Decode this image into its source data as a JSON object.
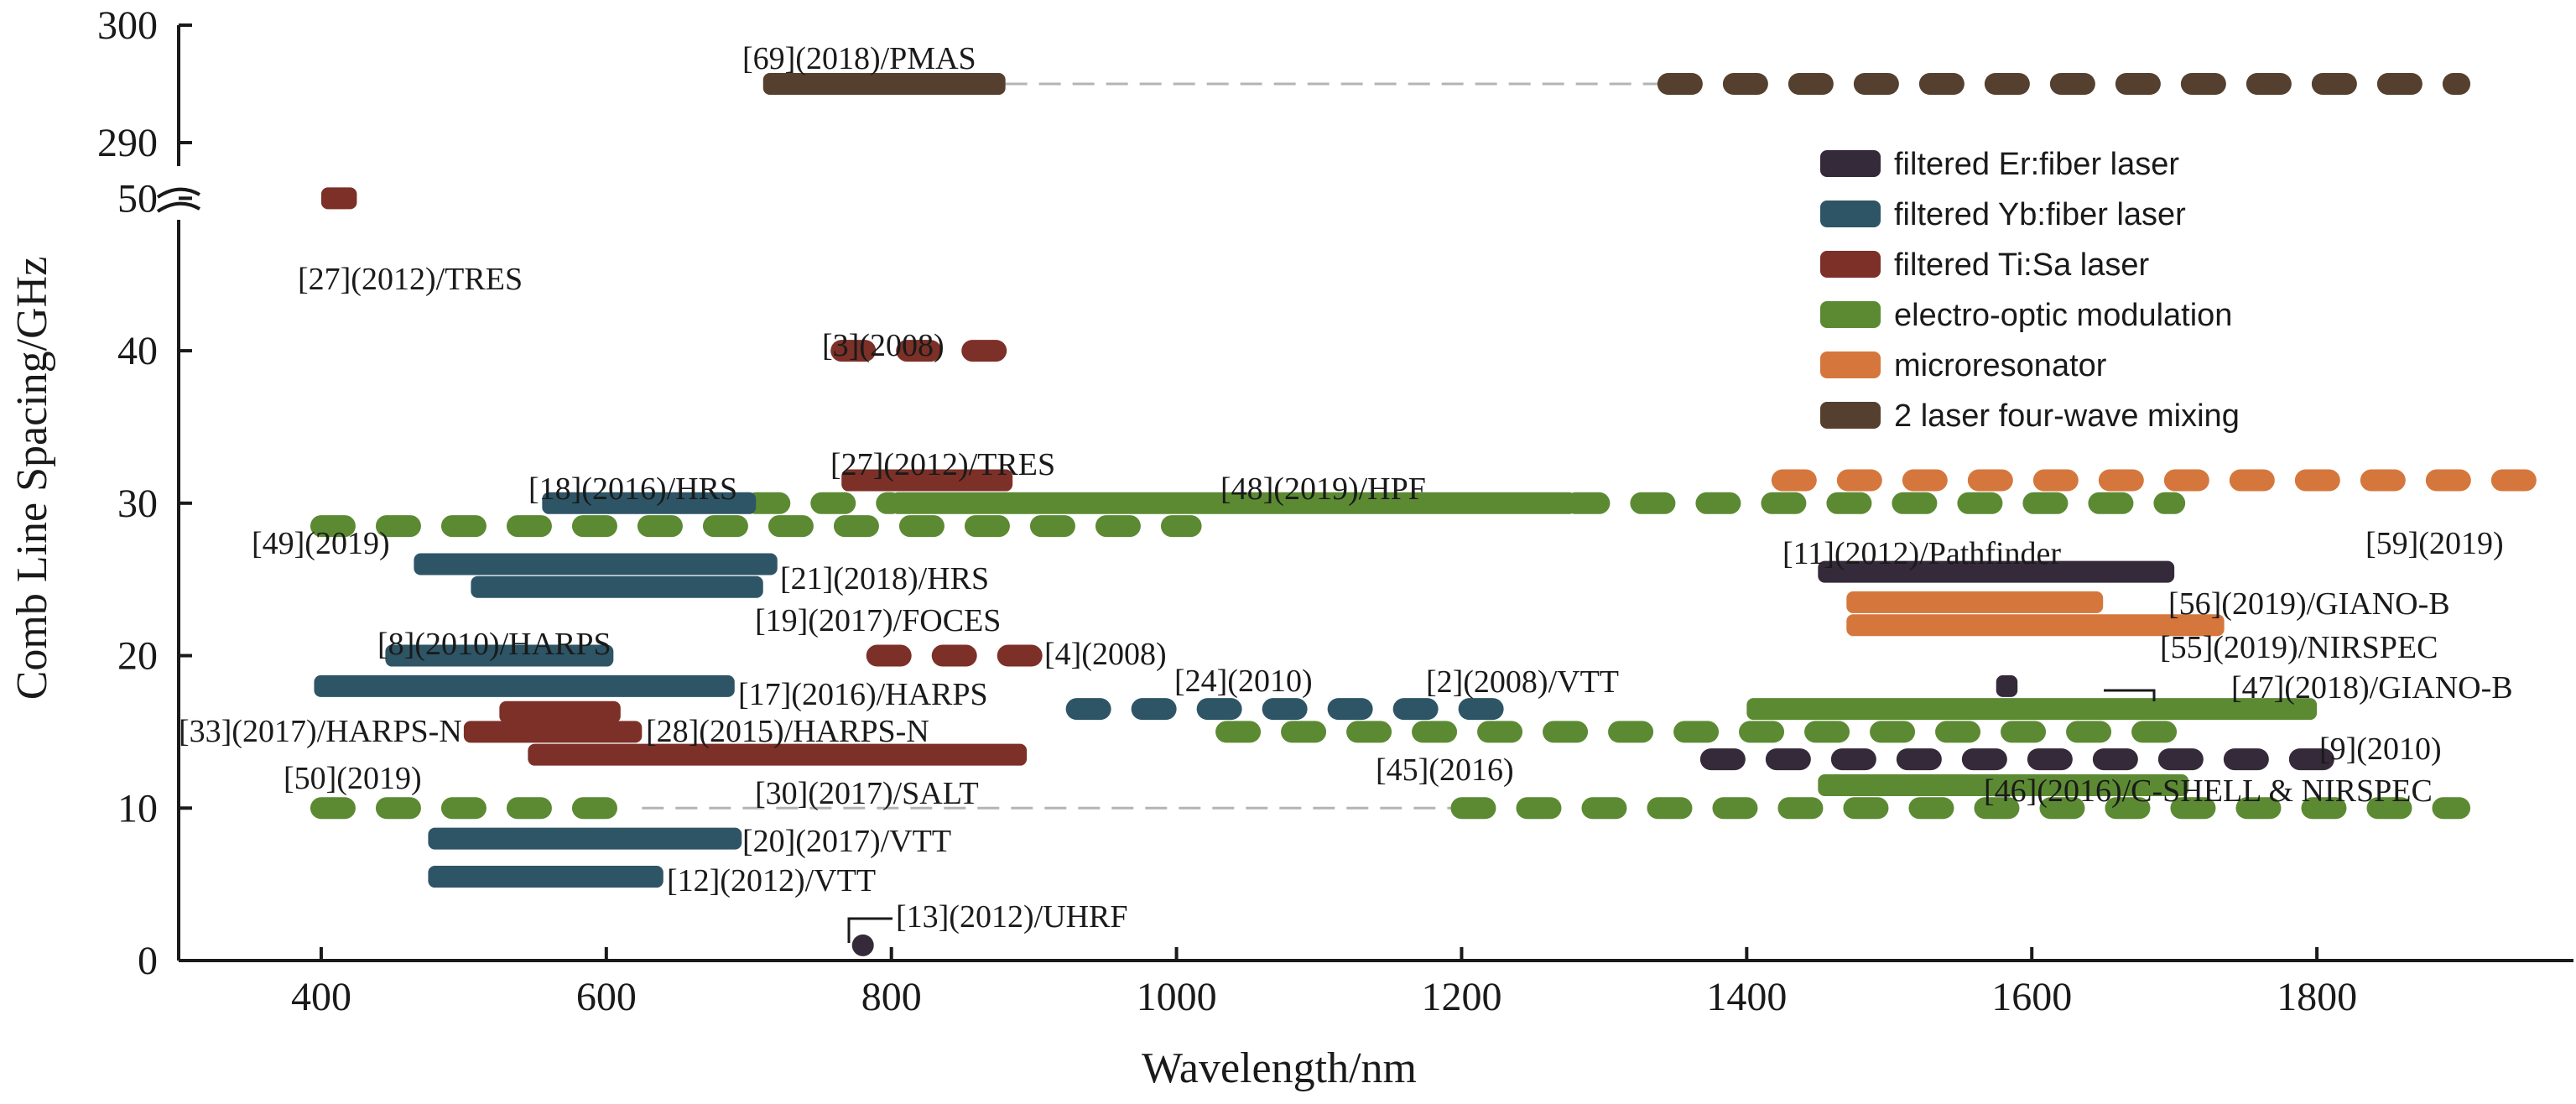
{
  "chart_data": {
    "type": "range-bar",
    "xlabel": "Wavelength/nm",
    "ylabel": "Comb Line Spacing/GHz",
    "xlim": [
      300,
      1980
    ],
    "ylim": [
      0,
      52
    ],
    "ylim_upper": [
      288,
      300
    ],
    "axis_break": true,
    "x_ticks": [
      "400",
      "600",
      "800",
      "1000",
      "1200",
      "1400",
      "1600",
      "1800"
    ],
    "y_ticks": [
      "0",
      "10",
      "20",
      "30",
      "40",
      "50"
    ],
    "y_ticks_upper": [
      "290",
      "300"
    ],
    "grid": false,
    "legend_position": "top-right",
    "legend": [
      {
        "key": "er",
        "label": "filtered Er:fiber laser",
        "color": "#352a3a"
      },
      {
        "key": "yb",
        "label": "filtered Yb:fiber laser",
        "color": "#2e5566"
      },
      {
        "key": "ti",
        "label": "filtered Ti:Sa laser",
        "color": "#7c3028"
      },
      {
        "key": "eo",
        "label": "electro-optic modulation",
        "color": "#5c8a33"
      },
      {
        "key": "micro",
        "label": "microresonator",
        "color": "#d5773d"
      },
      {
        "key": "fwm",
        "label": "2 laser four-wave mixing",
        "color": "#55402f"
      }
    ],
    "series": [
      {
        "label": "[69](2018)/PMAS",
        "type": "fwm",
        "y": 295,
        "segments": [
          {
            "x0": 710,
            "x1": 880,
            "dash": false
          },
          {
            "x0": 1345,
            "x1": 1900,
            "dash": true
          }
        ],
        "connector": [
          880,
          1345
        ]
      },
      {
        "label": "[27](2012)/TRES",
        "type": "ti",
        "y": 50,
        "segments": [
          {
            "x0": 400,
            "x1": 425,
            "dash": false
          }
        ]
      },
      {
        "label": "[3](2008)",
        "type": "ti",
        "y": 40,
        "segments": [
          {
            "x0": 765,
            "x1": 900,
            "dash": true
          }
        ]
      },
      {
        "label": "[27](2012)/TRES",
        "type": "ti",
        "y": 31.5,
        "segments": [
          {
            "x0": 765,
            "x1": 885,
            "dash": false
          }
        ]
      },
      {
        "label": "[48](2019)/HPF",
        "type": "eo",
        "y": 30,
        "segments": [
          {
            "x0": 800,
            "x1": 1280,
            "dash": false
          },
          {
            "x0": 705,
            "x1": 800,
            "dash": true
          },
          {
            "x0": 1280,
            "x1": 1700,
            "dash": true
          }
        ]
      },
      {
        "label": "[18](2016)/HRS",
        "type": "yb",
        "y": 30,
        "segments": [
          {
            "x0": 555,
            "x1": 705,
            "dash": false
          }
        ]
      },
      {
        "label": "[49](2019)",
        "type": "eo",
        "y": 28.5,
        "segments": [
          {
            "x0": 400,
            "x1": 1010,
            "dash": true
          }
        ]
      },
      {
        "label": "[59](2019)",
        "type": "micro",
        "y": 31.5,
        "segments": [
          {
            "x0": 1425,
            "x1": 1970,
            "dash": true
          }
        ]
      },
      {
        "label": "[21](2018)/HRS",
        "type": "yb",
        "y": 26,
        "segments": [
          {
            "x0": 465,
            "x1": 720,
            "dash": false
          }
        ]
      },
      {
        "label": "[19](2017)/FOCES",
        "type": "yb",
        "y": 24.5,
        "segments": [
          {
            "x0": 505,
            "x1": 710,
            "dash": false
          }
        ]
      },
      {
        "label": "[11](2012)/Pathfinder",
        "type": "er",
        "y": 25.5,
        "segments": [
          {
            "x0": 1450,
            "x1": 1700,
            "dash": false
          }
        ]
      },
      {
        "label": "[56](2019)/GIANO-B",
        "type": "micro",
        "y": 23.5,
        "segments": [
          {
            "x0": 1470,
            "x1": 1650,
            "dash": false
          }
        ]
      },
      {
        "label": "[55](2019)/NIRSPEC",
        "type": "micro",
        "y": 22,
        "segments": [
          {
            "x0": 1470,
            "x1": 1735,
            "dash": false
          }
        ]
      },
      {
        "label": "[8](2010)/HARPS",
        "type": "yb",
        "y": 20,
        "segments": [
          {
            "x0": 445,
            "x1": 605,
            "dash": false
          }
        ]
      },
      {
        "label": "[4](2008)",
        "type": "ti",
        "y": 20,
        "segments": [
          {
            "x0": 790,
            "x1": 900,
            "dash": true
          }
        ]
      },
      {
        "label": "[17](2016)/HARPS",
        "type": "yb",
        "y": 18,
        "segments": [
          {
            "x0": 395,
            "x1": 690,
            "dash": false
          }
        ]
      },
      {
        "label": "[2](2008)/VTT",
        "type": "er",
        "y": 18,
        "segments": [
          {
            "x0": 1575,
            "x1": 1590,
            "dash": false
          }
        ]
      },
      {
        "label": "[24](2010)",
        "type": "yb",
        "y": 16.5,
        "segments": [
          {
            "x0": 930,
            "x1": 1245,
            "dash": true
          }
        ]
      },
      {
        "label": "[47](2018)/GIANO-B",
        "type": "eo",
        "y": 16.5,
        "segments": [
          {
            "x0": 1400,
            "x1": 1800,
            "dash": false
          }
        ]
      },
      {
        "label": "[33](2017)/HARPS-N",
        "type": "ti",
        "y": 16.3,
        "segments": [
          {
            "x0": 525,
            "x1": 610,
            "dash": false
          }
        ]
      },
      {
        "label": "[28](2015)/HARPS-N",
        "type": "ti",
        "y": 15,
        "segments": [
          {
            "x0": 500,
            "x1": 625,
            "dash": false
          }
        ]
      },
      {
        "label": "[45](2016)",
        "type": "eo",
        "y": 15,
        "segments": [
          {
            "x0": 1035,
            "x1": 1700,
            "dash": true
          }
        ]
      },
      {
        "label": "[30](2017)/SALT",
        "type": "ti",
        "y": 13.5,
        "segments": [
          {
            "x0": 545,
            "x1": 895,
            "dash": false
          }
        ]
      },
      {
        "label": "[9](2010)",
        "type": "er",
        "y": 13.2,
        "segments": [
          {
            "x0": 1375,
            "x1": 1810,
            "dash": true
          }
        ]
      },
      {
        "label": "[46](2016)/C-SHELL & NIRSPEC",
        "type": "eo",
        "y": 11.5,
        "segments": [
          {
            "x0": 1450,
            "x1": 1710,
            "dash": false
          }
        ]
      },
      {
        "label": "[50](2019)",
        "type": "eo",
        "y": 10,
        "segments": [
          {
            "x0": 400,
            "x1": 625,
            "dash": true
          },
          {
            "x0": 1200,
            "x1": 1900,
            "dash": true
          }
        ],
        "connector": [
          625,
          1200
        ]
      },
      {
        "label": "[20](2017)/VTT",
        "type": "yb",
        "y": 8,
        "segments": [
          {
            "x0": 475,
            "x1": 695,
            "dash": false
          }
        ]
      },
      {
        "label": "[12](2012)/VTT",
        "type": "yb",
        "y": 5.5,
        "segments": [
          {
            "x0": 475,
            "x1": 640,
            "dash": false
          }
        ]
      },
      {
        "label": "[13](2012)/UHRF",
        "type": "er",
        "y": 1,
        "segments": [
          {
            "x0": 775,
            "x1": 785,
            "dash": false
          }
        ]
      }
    ]
  }
}
